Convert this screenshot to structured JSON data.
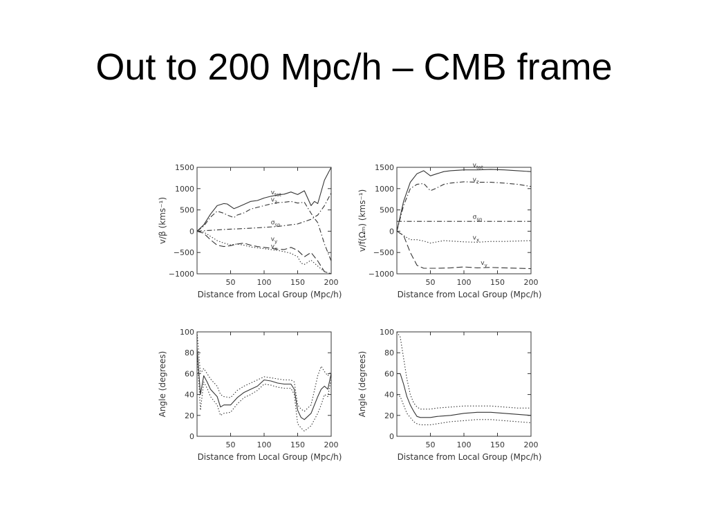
{
  "slide": {
    "title": "Out to 200 Mpc/h – CMB frame"
  },
  "chart_data": [
    {
      "id": "tl",
      "type": "line",
      "ylabel": "v/β (kms⁻¹)",
      "xlabel": "Distance from Local Group (Mpc/h)",
      "xlim": [
        0,
        200
      ],
      "ylim": [
        -1000,
        1500
      ],
      "xticks": [
        50,
        100,
        150,
        200
      ],
      "yticks": [
        -1000,
        -500,
        0,
        500,
        1000,
        1500
      ],
      "yticklabels": [
        "−1000",
        "−500",
        "0",
        "500",
        "1000",
        "1500"
      ],
      "series": [
        {
          "name": "v_tot",
          "style": "solid",
          "x": [
            0,
            10,
            20,
            30,
            40,
            45,
            55,
            60,
            70,
            80,
            90,
            100,
            110,
            120,
            130,
            140,
            150,
            160,
            170,
            175,
            180,
            190,
            200
          ],
          "y": [
            0,
            150,
            400,
            600,
            650,
            640,
            530,
            560,
            630,
            700,
            720,
            780,
            820,
            850,
            870,
            920,
            860,
            950,
            600,
            700,
            650,
            1200,
            1500
          ]
        },
        {
          "name": "v_z",
          "style": "dashdot",
          "x": [
            0,
            10,
            20,
            30,
            40,
            45,
            55,
            60,
            70,
            80,
            90,
            100,
            110,
            120,
            130,
            140,
            150,
            160,
            170,
            175,
            180,
            190,
            200
          ],
          "y": [
            0,
            120,
            330,
            470,
            420,
            380,
            320,
            380,
            430,
            520,
            560,
            600,
            640,
            670,
            680,
            700,
            660,
            680,
            420,
            300,
            200,
            -300,
            -700
          ]
        },
        {
          "name": "σ_sn",
          "style": "dashdot",
          "x": [
            0,
            40,
            80,
            120,
            150,
            170,
            180,
            190,
            200
          ],
          "y": [
            0,
            40,
            70,
            110,
            170,
            280,
            380,
            600,
            900
          ]
        },
        {
          "name": "v_y",
          "style": "dashed",
          "x": [
            0,
            10,
            20,
            30,
            40,
            50,
            60,
            70,
            80,
            90,
            100,
            110,
            120,
            130,
            140,
            150,
            160,
            170,
            180,
            190,
            200
          ],
          "y": [
            0,
            -50,
            -200,
            -330,
            -360,
            -340,
            -300,
            -280,
            -330,
            -360,
            -380,
            -400,
            -420,
            -430,
            -380,
            -450,
            -600,
            -500,
            -700,
            -950,
            -1000
          ]
        },
        {
          "name": "v_x",
          "style": "dotted",
          "x": [
            0,
            10,
            20,
            30,
            40,
            50,
            60,
            70,
            80,
            90,
            100,
            110,
            120,
            130,
            140,
            150,
            155,
            160,
            170,
            180,
            190,
            200
          ],
          "y": [
            0,
            -20,
            -120,
            -220,
            -280,
            -320,
            -300,
            -330,
            -370,
            -390,
            -410,
            -430,
            -450,
            -480,
            -520,
            -600,
            -750,
            -780,
            -680,
            -820,
            -950,
            -1000
          ]
        }
      ],
      "annotations": [
        {
          "text": "v",
          "sub": "tot",
          "x": 110,
          "y": 870
        },
        {
          "text": "v",
          "sub": "z",
          "x": 110,
          "y": 700
        },
        {
          "text": "σ",
          "sub": "sn",
          "x": 110,
          "y": 160
        },
        {
          "text": "v",
          "sub": "y",
          "x": 110,
          "y": -230
        },
        {
          "text": "v",
          "sub": "x",
          "x": 110,
          "y": -400
        }
      ]
    },
    {
      "id": "tr",
      "type": "line",
      "ylabel": "v/f(Ωₘ) (kms⁻¹)",
      "xlabel": "Distance from Local Group (Mpc/h)",
      "xlim": [
        0,
        200
      ],
      "ylim": [
        -1000,
        1500
      ],
      "xticks": [
        50,
        100,
        150,
        200
      ],
      "yticks": [
        -1000,
        -500,
        0,
        500,
        1000,
        1500
      ],
      "yticklabels": [
        "−1000",
        "−500",
        "0",
        "500",
        "1000",
        "1500"
      ],
      "series": [
        {
          "name": "v_tot",
          "style": "solid",
          "x": [
            0,
            10,
            20,
            30,
            40,
            50,
            60,
            70,
            80,
            100,
            120,
            140,
            160,
            180,
            200
          ],
          "y": [
            0,
            700,
            1150,
            1350,
            1420,
            1300,
            1350,
            1400,
            1420,
            1440,
            1440,
            1450,
            1440,
            1420,
            1400
          ]
        },
        {
          "name": "v_z",
          "style": "dashdot",
          "x": [
            0,
            10,
            20,
            30,
            40,
            50,
            60,
            70,
            80,
            100,
            120,
            140,
            160,
            180,
            200
          ],
          "y": [
            0,
            600,
            1000,
            1100,
            1120,
            950,
            1020,
            1100,
            1130,
            1160,
            1150,
            1150,
            1130,
            1100,
            1050
          ]
        },
        {
          "name": "σ_sn",
          "style": "dashdot",
          "x": [
            0,
            50,
            100,
            150,
            200
          ],
          "y": [
            230,
            230,
            230,
            230,
            230
          ]
        },
        {
          "name": "v_x",
          "style": "dotted",
          "x": [
            0,
            10,
            20,
            30,
            40,
            50,
            60,
            70,
            80,
            100,
            120,
            140,
            160,
            180,
            200
          ],
          "y": [
            0,
            -100,
            -200,
            -200,
            -230,
            -280,
            -250,
            -220,
            -230,
            -250,
            -260,
            -240,
            -240,
            -230,
            -220
          ]
        },
        {
          "name": "v_y",
          "style": "dashed",
          "x": [
            0,
            10,
            20,
            30,
            40,
            60,
            80,
            100,
            120,
            140,
            160,
            180,
            200
          ],
          "y": [
            0,
            -100,
            -500,
            -800,
            -870,
            -870,
            -860,
            -840,
            -860,
            -850,
            -860,
            -870,
            -880
          ]
        }
      ],
      "annotations": [
        {
          "text": "v",
          "sub": "tot",
          "x": 113,
          "y": 1510
        },
        {
          "text": "v",
          "sub": "z",
          "x": 113,
          "y": 1170
        },
        {
          "text": "σ",
          "sub": "sn",
          "x": 113,
          "y": 290
        },
        {
          "text": "v",
          "sub": "x",
          "x": 113,
          "y": -200
        },
        {
          "text": "v",
          "sub": "y",
          "x": 125,
          "y": -790
        }
      ]
    },
    {
      "id": "bl",
      "type": "line",
      "ylabel": "Angle (degrees)",
      "xlabel": "Distance from Local Group (Mpc/h)",
      "xlim": [
        0,
        200
      ],
      "ylim": [
        0,
        100
      ],
      "xticks": [
        50,
        100,
        150,
        200
      ],
      "yticks": [
        0,
        20,
        40,
        60,
        80,
        100
      ],
      "yticklabels": [
        "0",
        "20",
        "40",
        "60",
        "80",
        "100"
      ],
      "series": [
        {
          "name": "angle",
          "style": "solid",
          "x": [
            0,
            5,
            10,
            15,
            20,
            30,
            35,
            40,
            50,
            60,
            70,
            80,
            90,
            100,
            110,
            120,
            130,
            140,
            145,
            150,
            155,
            160,
            170,
            180,
            185,
            190,
            195,
            200
          ],
          "y": [
            85,
            40,
            58,
            52,
            45,
            38,
            28,
            30,
            30,
            37,
            42,
            45,
            48,
            54,
            53,
            51,
            50,
            50,
            45,
            25,
            18,
            16,
            22,
            38,
            45,
            48,
            45,
            60
          ]
        },
        {
          "name": "upper",
          "style": "dotted",
          "x": [
            0,
            5,
            10,
            15,
            20,
            30,
            35,
            40,
            50,
            60,
            70,
            80,
            90,
            100,
            110,
            120,
            130,
            140,
            145,
            150,
            155,
            160,
            170,
            180,
            185,
            190,
            195,
            200
          ],
          "y": [
            100,
            60,
            65,
            60,
            55,
            48,
            40,
            38,
            37,
            44,
            48,
            51,
            54,
            57,
            56,
            55,
            54,
            54,
            52,
            30,
            26,
            24,
            30,
            58,
            67,
            62,
            58,
            62
          ]
        },
        {
          "name": "lower",
          "style": "dotted",
          "x": [
            0,
            5,
            10,
            15,
            20,
            30,
            35,
            40,
            50,
            60,
            70,
            80,
            90,
            100,
            110,
            120,
            130,
            140,
            145,
            150,
            155,
            160,
            170,
            180,
            185,
            190,
            195,
            200
          ],
          "y": [
            80,
            25,
            52,
            46,
            38,
            30,
            20,
            22,
            23,
            31,
            37,
            40,
            44,
            50,
            49,
            47,
            46,
            46,
            40,
            12,
            8,
            5,
            10,
            22,
            30,
            40,
            38,
            55
          ]
        }
      ],
      "annotations": []
    },
    {
      "id": "br",
      "type": "line",
      "ylabel": "Angle (degrees)",
      "xlabel": "Distance from Local Group (Mpc/h)",
      "xlim": [
        0,
        200
      ],
      "ylim": [
        0,
        100
      ],
      "xticks": [
        50,
        100,
        150,
        200
      ],
      "yticks": [
        0,
        20,
        40,
        60,
        80,
        100
      ],
      "yticklabels": [
        "0",
        "20",
        "40",
        "60",
        "80",
        "100"
      ],
      "series": [
        {
          "name": "angle",
          "style": "solid",
          "x": [
            0,
            5,
            10,
            15,
            20,
            25,
            30,
            35,
            40,
            50,
            60,
            80,
            100,
            120,
            140,
            160,
            180,
            200
          ],
          "y": [
            60,
            60,
            50,
            38,
            30,
            24,
            19,
            18,
            18,
            18,
            19,
            20,
            22,
            23,
            23,
            22,
            21,
            20
          ]
        },
        {
          "name": "upper",
          "style": "dotted",
          "x": [
            0,
            5,
            10,
            15,
            20,
            25,
            30,
            35,
            40,
            50,
            60,
            80,
            100,
            120,
            140,
            160,
            180,
            200
          ],
          "y": [
            100,
            95,
            75,
            55,
            40,
            32,
            28,
            26,
            26,
            26,
            27,
            28,
            29,
            29,
            29,
            28,
            27,
            27
          ]
        },
        {
          "name": "lower",
          "style": "dotted",
          "x": [
            0,
            5,
            10,
            15,
            20,
            25,
            30,
            35,
            40,
            50,
            60,
            80,
            100,
            120,
            140,
            160,
            180,
            200
          ],
          "y": [
            40,
            38,
            30,
            22,
            18,
            14,
            12,
            11,
            11,
            11,
            12,
            14,
            15,
            16,
            16,
            15,
            14,
            13
          ]
        }
      ],
      "annotations": []
    }
  ]
}
